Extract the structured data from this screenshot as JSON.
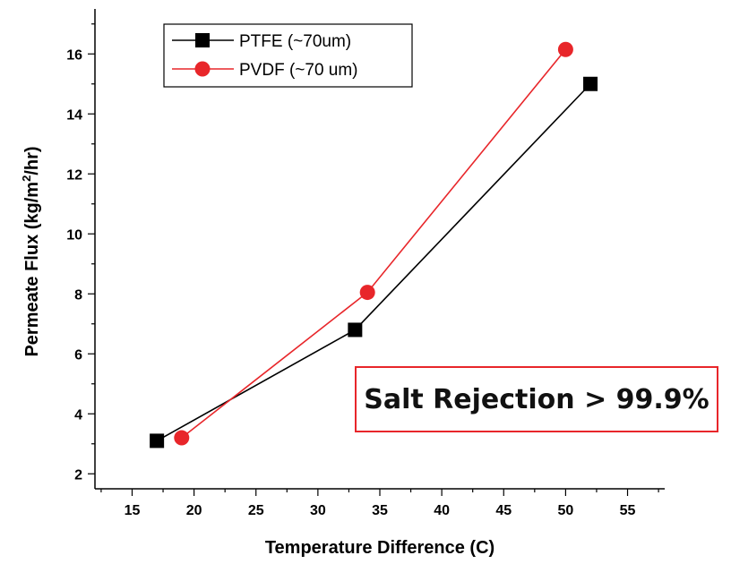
{
  "chart_data": {
    "type": "line",
    "xlabel": "Temperature Difference (C)",
    "ylabel_parts": [
      "Permeate Flux (kg/m",
      "2",
      "/hr)"
    ],
    "xlim": [
      12,
      58
    ],
    "ylim": [
      1.5,
      17.5
    ],
    "x_ticks": [
      15,
      20,
      25,
      30,
      35,
      40,
      45,
      50,
      55
    ],
    "y_ticks": [
      2,
      4,
      6,
      8,
      10,
      12,
      14,
      16
    ],
    "legend_position": "top-left",
    "grid": false,
    "series": [
      {
        "name": "PTFE (~70um)",
        "marker": "square",
        "color": "#000000",
        "x": [
          17,
          33,
          52
        ],
        "y": [
          3.1,
          6.8,
          15.0
        ]
      },
      {
        "name": "PVDF (~70 um)",
        "marker": "circle",
        "color": "#e8262a",
        "x": [
          19,
          34,
          50
        ],
        "y": [
          3.2,
          8.05,
          16.15
        ]
      }
    ],
    "annotation": "Salt Rejection > 99.9%"
  }
}
